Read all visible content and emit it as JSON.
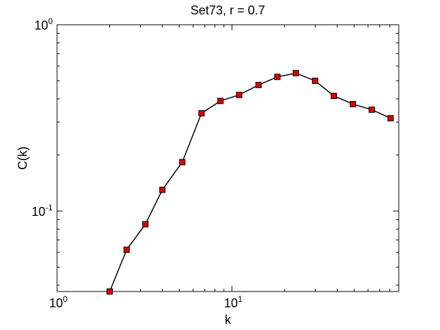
{
  "chart_data": {
    "type": "line",
    "title": "Set73, r = 0.7",
    "xlabel": "k",
    "ylabel": "C(k)",
    "xscale": "log",
    "yscale": "log",
    "xlim": [
      1,
      90
    ],
    "ylim": [
      0.037,
      1
    ],
    "grid": false,
    "legend": "none",
    "x_tick_labels": [
      {
        "value": 1,
        "base": "10",
        "exp": "0"
      },
      {
        "value": 10,
        "base": "10",
        "exp": "1"
      }
    ],
    "y_tick_labels": [
      {
        "value": 0.1,
        "base": "10",
        "exp": "-1"
      },
      {
        "value": 1,
        "base": "10",
        "exp": "0"
      }
    ],
    "series": [
      {
        "x": [
          2.0,
          2.5,
          3.2,
          4.0,
          5.2,
          6.7,
          8.6,
          11.0,
          14.2,
          18.2,
          23.2,
          29.9,
          38.3,
          49.2,
          63.1,
          80.8
        ],
        "y": [
          0.037,
          0.062,
          0.085,
          0.13,
          0.183,
          0.335,
          0.39,
          0.42,
          0.475,
          0.525,
          0.55,
          0.5,
          0.415,
          0.375,
          0.35,
          0.315
        ],
        "line_color": "#000000",
        "marker": "square",
        "marker_face": "#dd0000",
        "marker_edge": "#000000"
      }
    ]
  }
}
